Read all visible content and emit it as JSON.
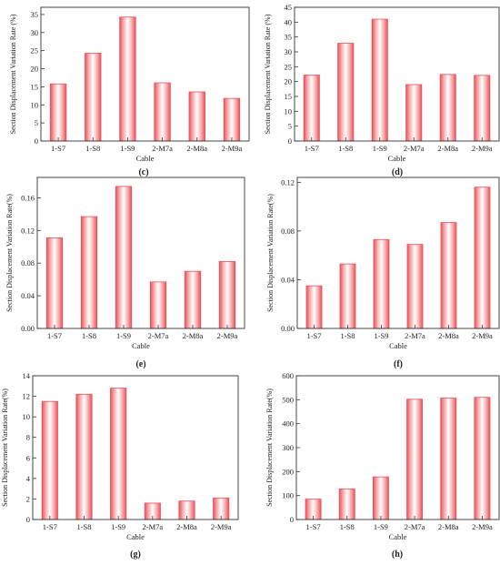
{
  "colors": {
    "bar_edge": "#e8535a",
    "bar_core": "#ffffff",
    "bar_mid": "#f7a5a8",
    "axis": "#333333"
  },
  "chart_data": [
    {
      "type": "bar",
      "panel_label": "(c)",
      "categories": [
        "1-S7",
        "1-S8",
        "1-S9",
        "2-M7a",
        "2-M8a",
        "2-M9a"
      ],
      "values": [
        15.8,
        24.3,
        34.3,
        16.1,
        13.6,
        11.8
      ],
      "xlabel": "Cable",
      "ylabel": "Section Displacement Variation Rate (%)",
      "ylim": [
        0,
        37
      ],
      "yticks": [
        0,
        5,
        10,
        15,
        20,
        25,
        30,
        35
      ],
      "ytick_labels": [
        "0",
        "5",
        "10",
        "15",
        "20",
        "25",
        "30",
        "35"
      ]
    },
    {
      "type": "bar",
      "panel_label": "(d)",
      "categories": [
        "1-S7",
        "1-S8",
        "1-S9",
        "2-M7a",
        "2-M8a",
        "2-M9a"
      ],
      "values": [
        22.2,
        32.9,
        41.0,
        19.0,
        22.4,
        22.1
      ],
      "xlabel": "Cable",
      "ylabel": "Section Displacement Variation Rate (%)",
      "ylim": [
        0,
        45
      ],
      "yticks": [
        0,
        5,
        10,
        15,
        20,
        25,
        30,
        35,
        40,
        45
      ],
      "ytick_labels": [
        "0",
        "5",
        "10",
        "15",
        "20",
        "25",
        "30",
        "35",
        "40",
        "45"
      ]
    },
    {
      "type": "bar",
      "panel_label": "(e)",
      "categories": [
        "1-S7",
        "1-S8",
        "1-S9",
        "2-M7a",
        "2-M8a",
        "2-M9a"
      ],
      "values": [
        0.111,
        0.137,
        0.174,
        0.057,
        0.07,
        0.082
      ],
      "xlabel": "Cable",
      "ylabel": "Section Displacement Variation Rate(%)",
      "ylim": [
        0,
        0.185
      ],
      "yticks": [
        0,
        0.04,
        0.08,
        0.12,
        0.16
      ],
      "ytick_labels": [
        "0.00",
        "0.04",
        "0.08",
        "0.12",
        "0.16"
      ]
    },
    {
      "type": "bar",
      "panel_label": "(f)",
      "categories": [
        "1-S7",
        "1-S8",
        "1-S9",
        "2-M7a",
        "2-M8a",
        "2-M9a"
      ],
      "values": [
        0.035,
        0.053,
        0.073,
        0.069,
        0.087,
        0.116
      ],
      "xlabel": "Cable",
      "ylabel": "Section Displacement Variation Rate(%)",
      "ylim": [
        0,
        0.124
      ],
      "yticks": [
        0,
        0.04,
        0.08,
        0.12
      ],
      "ytick_labels": [
        "0.00",
        "0.04",
        "0.08",
        "0.12"
      ]
    },
    {
      "type": "bar",
      "panel_label": "(g)",
      "categories": [
        "1-S7",
        "1-S8",
        "1-S9",
        "2-M7a",
        "2-M8a",
        "2-M9a"
      ],
      "values": [
        11.5,
        12.2,
        12.8,
        1.6,
        1.8,
        2.1
      ],
      "xlabel": "Cable",
      "ylabel": "Section Displacement Variation Rate(%)",
      "ylim": [
        0,
        14
      ],
      "yticks": [
        0,
        2,
        4,
        6,
        8,
        10,
        12,
        14
      ],
      "ytick_labels": [
        "0",
        "2",
        "4",
        "6",
        "8",
        "10",
        "12",
        "14"
      ]
    },
    {
      "type": "bar",
      "panel_label": "(h)",
      "categories": [
        "1-S7",
        "1-S8",
        "1-S9",
        "2-M7a",
        "2-M8a",
        "2-M9a"
      ],
      "values": [
        85,
        128,
        178,
        502,
        507,
        510
      ],
      "xlabel": "Cable",
      "ylabel": "Section Displacement Variation Rate(%)",
      "ylim": [
        0,
        600
      ],
      "yticks": [
        0,
        100,
        200,
        300,
        400,
        500,
        600
      ],
      "ytick_labels": [
        "0",
        "100",
        "200",
        "300",
        "400",
        "500",
        "600"
      ]
    }
  ]
}
